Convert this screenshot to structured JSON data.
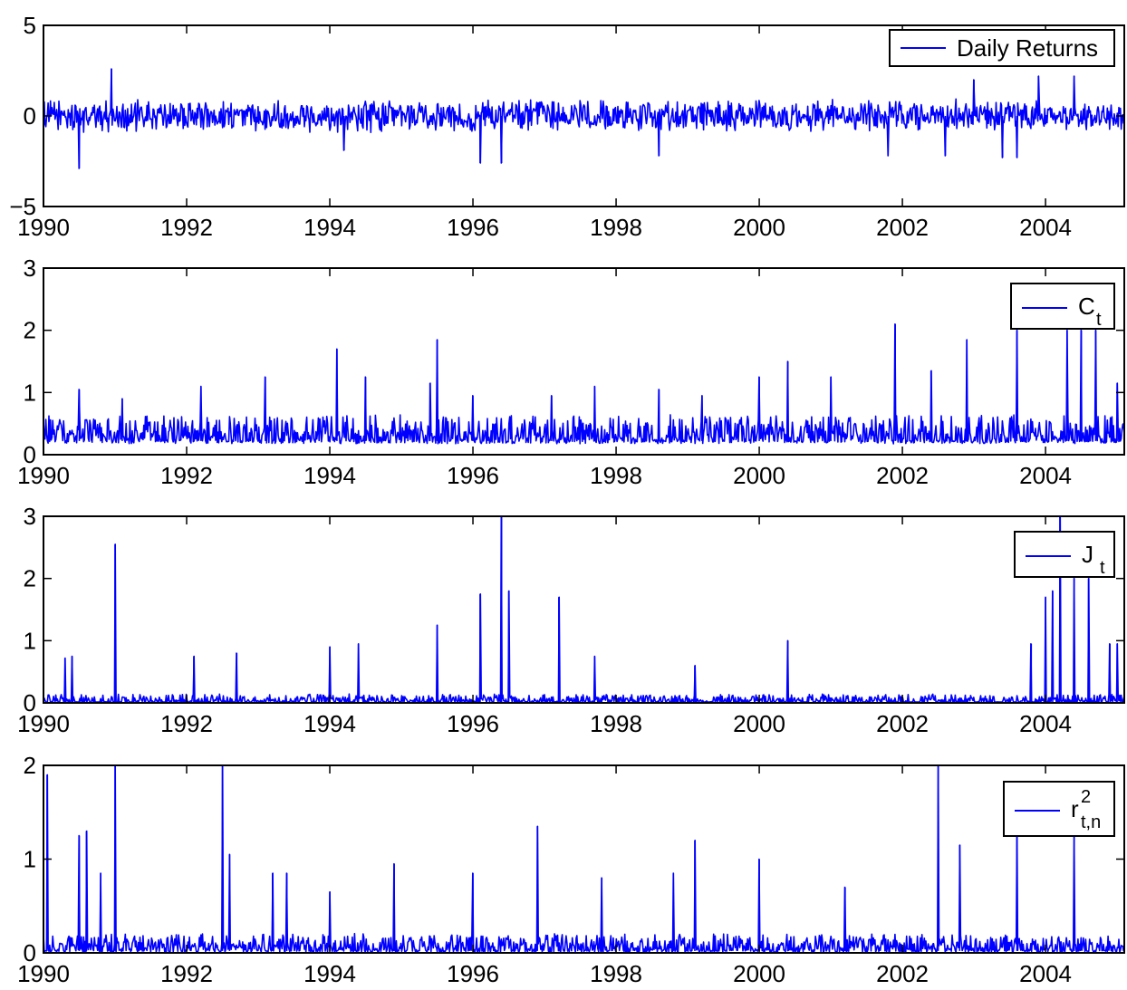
{
  "chart_data": [
    {
      "type": "line",
      "title": "",
      "xlabel": "",
      "ylabel": "",
      "xlim": [
        1990,
        2005.1
      ],
      "ylim": [
        -5,
        5
      ],
      "x_ticks": [
        "1990",
        "1992",
        "1994",
        "1996",
        "1998",
        "2000",
        "2002",
        "2004"
      ],
      "y_ticks": [
        "−5",
        "0",
        "5"
      ],
      "grid": false,
      "legend_position": "top-right",
      "series": [
        {
          "name": "Daily Returns",
          "color": "#0000ff",
          "baseline": 0,
          "amplitude": 0.7,
          "spikes": [
            [
              1990.5,
              -2.9
            ],
            [
              1990.95,
              2.6
            ],
            [
              1996.1,
              -2.6
            ],
            [
              1996.4,
              -2.6
            ],
            [
              1998.6,
              -2.2
            ],
            [
              2001.8,
              -2.2
            ],
            [
              2002.6,
              -2.2
            ],
            [
              2003.4,
              -2.3
            ],
            [
              2003.6,
              -2.3
            ],
            [
              2003.9,
              2.2
            ],
            [
              2004.4,
              2.2
            ],
            [
              1994.2,
              -1.9
            ],
            [
              2003.0,
              2.0
            ]
          ]
        }
      ]
    },
    {
      "type": "line",
      "title": "",
      "xlabel": "",
      "ylabel": "",
      "xlim": [
        1990,
        2005.1
      ],
      "ylim": [
        0,
        3
      ],
      "x_ticks": [
        "1990",
        "1992",
        "1994",
        "1996",
        "1998",
        "2000",
        "2002",
        "2004"
      ],
      "y_ticks": [
        "0",
        "1",
        "2",
        "3"
      ],
      "grid": false,
      "legend_position": "top-right",
      "series": [
        {
          "name": "C",
          "name_subscript": "t",
          "color": "#0000ff",
          "baseline": 0.22,
          "amplitude": 0.18,
          "spikes": [
            [
              1990.5,
              1.05
            ],
            [
              1991.1,
              0.9
            ],
            [
              1992.2,
              1.1
            ],
            [
              1993.1,
              1.25
            ],
            [
              1994.1,
              1.7
            ],
            [
              1994.5,
              1.25
            ],
            [
              1995.4,
              1.15
            ],
            [
              1995.5,
              1.85
            ],
            [
              1996.0,
              0.95
            ],
            [
              1997.1,
              0.95
            ],
            [
              1997.7,
              1.1
            ],
            [
              1998.6,
              1.05
            ],
            [
              1999.2,
              0.95
            ],
            [
              2000.0,
              1.25
            ],
            [
              2000.4,
              1.5
            ],
            [
              2001.0,
              1.25
            ],
            [
              2001.9,
              2.1
            ],
            [
              2002.4,
              1.35
            ],
            [
              2002.9,
              1.85
            ],
            [
              2003.6,
              2.0
            ],
            [
              2004.3,
              2.0
            ],
            [
              2004.5,
              2.0
            ],
            [
              2004.7,
              2.0
            ],
            [
              2005.0,
              1.15
            ]
          ]
        }
      ]
    },
    {
      "type": "line",
      "title": "",
      "xlabel": "",
      "ylabel": "",
      "xlim": [
        1990,
        2005.1
      ],
      "ylim": [
        0,
        3
      ],
      "x_ticks": [
        "1990",
        "1992",
        "1994",
        "1996",
        "1998",
        "2000",
        "2002",
        "2004"
      ],
      "y_ticks": [
        "0",
        "1",
        "2",
        "3"
      ],
      "grid": false,
      "legend_position": "top-right",
      "series": [
        {
          "name": "J",
          "name_subscript": "t",
          "color": "#0000ff",
          "baseline": 0.0,
          "amplitude": 0.06,
          "spikes": [
            [
              1990.3,
              0.72
            ],
            [
              1990.4,
              0.75
            ],
            [
              1991.0,
              2.55
            ],
            [
              1992.1,
              0.75
            ],
            [
              1992.7,
              0.8
            ],
            [
              1994.0,
              0.9
            ],
            [
              1994.4,
              0.95
            ],
            [
              1995.5,
              1.25
            ],
            [
              1996.1,
              1.75
            ],
            [
              1996.4,
              3.0
            ],
            [
              1996.5,
              1.8
            ],
            [
              1997.2,
              1.7
            ],
            [
              1997.7,
              0.75
            ],
            [
              1999.1,
              0.6
            ],
            [
              2000.4,
              1.0
            ],
            [
              2003.8,
              0.95
            ],
            [
              2004.0,
              1.7
            ],
            [
              2004.1,
              1.8
            ],
            [
              2004.2,
              3.0
            ],
            [
              2004.4,
              2.0
            ],
            [
              2004.6,
              2.0
            ],
            [
              2004.9,
              0.95
            ],
            [
              2005.0,
              0.95
            ]
          ]
        }
      ]
    },
    {
      "type": "line",
      "title": "",
      "xlabel": "",
      "ylabel": "",
      "xlim": [
        1990,
        2005.1
      ],
      "ylim": [
        0,
        2
      ],
      "x_ticks": [
        "1990",
        "1992",
        "1994",
        "1996",
        "1998",
        "2000",
        "2002",
        "2004"
      ],
      "y_ticks": [
        "0",
        "1",
        "2"
      ],
      "grid": false,
      "legend_position": "top-right",
      "series": [
        {
          "name": "r",
          "name_subscript": "t,n",
          "name_superscript": "2",
          "color": "#0000ff",
          "baseline": 0.02,
          "amplitude": 0.08,
          "spikes": [
            [
              1990.05,
              1.9
            ],
            [
              1990.5,
              1.25
            ],
            [
              1990.6,
              1.3
            ],
            [
              1990.8,
              0.85
            ],
            [
              1991.0,
              2.0
            ],
            [
              1992.5,
              2.0
            ],
            [
              1992.6,
              1.05
            ],
            [
              1993.2,
              0.85
            ],
            [
              1993.4,
              0.85
            ],
            [
              1994.0,
              0.65
            ],
            [
              1994.9,
              0.95
            ],
            [
              1996.0,
              0.85
            ],
            [
              1996.9,
              1.35
            ],
            [
              1997.8,
              0.8
            ],
            [
              1998.8,
              0.85
            ],
            [
              1999.1,
              1.2
            ],
            [
              2000.0,
              1.0
            ],
            [
              2001.2,
              0.7
            ],
            [
              2002.5,
              2.0
            ],
            [
              2002.8,
              1.15
            ],
            [
              2003.6,
              1.3
            ],
            [
              2004.4,
              1.25
            ]
          ]
        }
      ]
    }
  ]
}
